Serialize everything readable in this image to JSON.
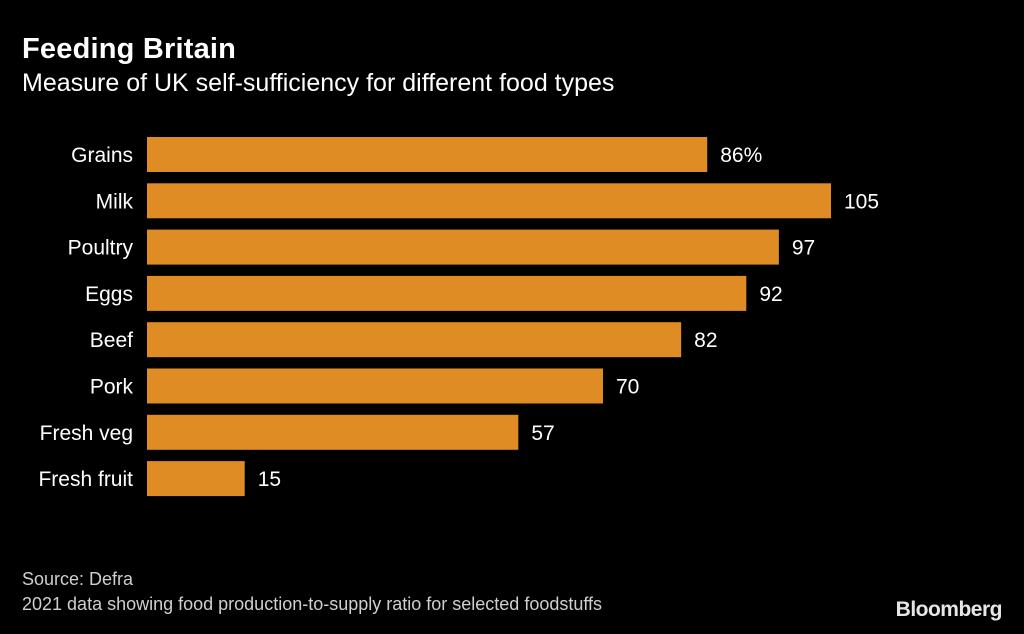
{
  "chart_data": {
    "type": "bar",
    "orientation": "horizontal",
    "title": "Feeding Britain",
    "subtitle": "Measure of UK self-sufficiency for different food types",
    "categories": [
      "Grains",
      "Milk",
      "Poultry",
      "Eggs",
      "Beef",
      "Pork",
      "Fresh veg",
      "Fresh fruit"
    ],
    "values": [
      86,
      105,
      97,
      92,
      82,
      70,
      57,
      15
    ],
    "value_labels": [
      "86%",
      "105",
      "97",
      "92",
      "82",
      "70",
      "57",
      "15"
    ],
    "xlim": [
      0,
      105
    ],
    "bar_color": "#e08c25",
    "background_color": "#000000",
    "text_color": "#ffffff",
    "source": "Source: Defra",
    "note": "2021 data showing food production-to-supply ratio for selected foodstuffs"
  },
  "brand": "Bloomberg"
}
